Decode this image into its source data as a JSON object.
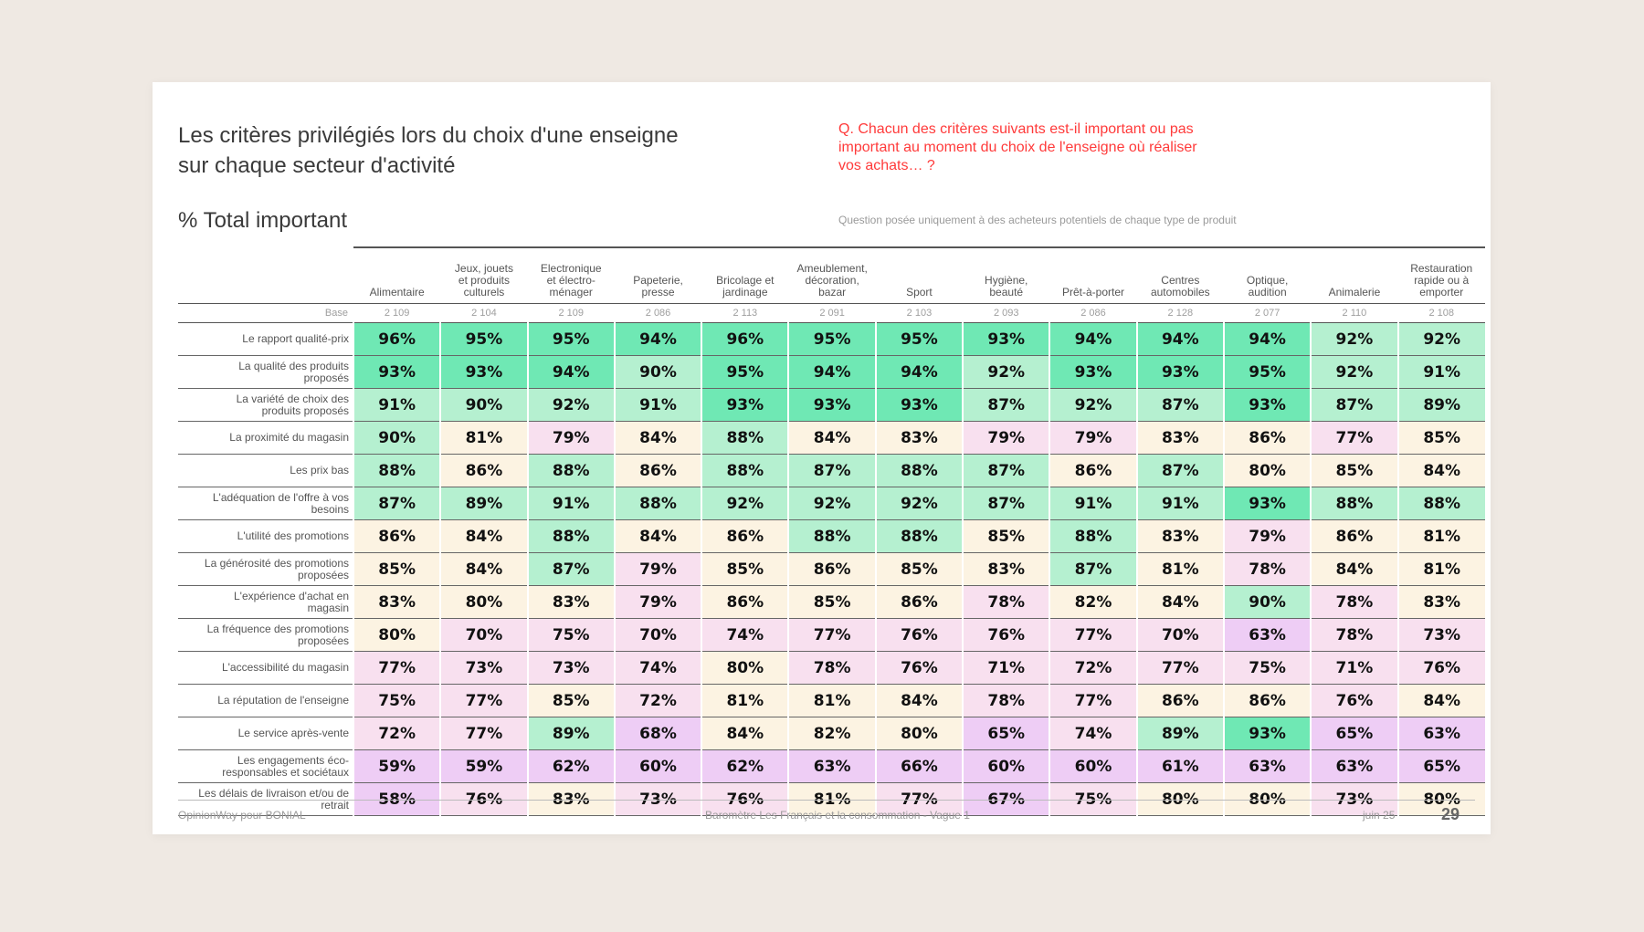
{
  "title_line1": "Les critères privilégiés lors du choix d'une enseigne",
  "title_line2": "sur chaque secteur d'activité",
  "question_line1": "Q. Chacun des critères suivants est-il important ou pas",
  "question_line2": "important au moment du choix de l'enseigne où réaliser",
  "question_line3": "vos achats… ?",
  "subtitle": "% Total important",
  "note": "Question posée uniquement à des acheteurs potentiels de chaque type de produit",
  "colors": {
    "green_high": "#6fe8b4",
    "green_mid": "#b5f0d0",
    "cream": "#fcf3e2",
    "pink": "#f8e0ef",
    "lavender": "#eecdf5"
  },
  "columns": [
    [
      "",
      "",
      "Alimentaire"
    ],
    [
      "Jeux, jouets",
      "et produits",
      "culturels"
    ],
    [
      "Electronique",
      "et électro-",
      "ménager"
    ],
    [
      "",
      "Papeterie,",
      "presse"
    ],
    [
      "",
      "Bricolage et",
      "jardinage"
    ],
    [
      "Ameublement,",
      "décoration,",
      "bazar"
    ],
    [
      "",
      "",
      "Sport"
    ],
    [
      "",
      "Hygiène,",
      "beauté"
    ],
    [
      "",
      "",
      "Prêt-à-porter"
    ],
    [
      "",
      "Centres",
      "automobiles"
    ],
    [
      "",
      "Optique,",
      "audition"
    ],
    [
      "",
      "",
      "Animalerie"
    ],
    [
      "Restauration",
      "rapide ou à",
      "emporter"
    ]
  ],
  "base_label": "Base",
  "bases": [
    "2 109",
    "2 104",
    "2 109",
    "2 086",
    "2 113",
    "2 091",
    "2 103",
    "2 093",
    "2 086",
    "2 128",
    "2 077",
    "2 110",
    "2 108"
  ],
  "rows": [
    {
      "label": [
        "Le rapport qualité-prix"
      ],
      "values": [
        96,
        95,
        95,
        94,
        96,
        95,
        95,
        93,
        94,
        94,
        94,
        92,
        92
      ]
    },
    {
      "label": [
        "La qualité des produits",
        "proposés"
      ],
      "values": [
        93,
        93,
        94,
        90,
        95,
        94,
        94,
        92,
        93,
        93,
        95,
        92,
        91
      ]
    },
    {
      "label": [
        "La variété de choix des",
        "produits proposés"
      ],
      "values": [
        91,
        90,
        92,
        91,
        93,
        93,
        93,
        87,
        92,
        87,
        93,
        87,
        89
      ]
    },
    {
      "label": [
        "La proximité du magasin"
      ],
      "values": [
        90,
        81,
        79,
        84,
        88,
        84,
        83,
        79,
        79,
        83,
        86,
        77,
        85
      ]
    },
    {
      "label": [
        "Les prix bas"
      ],
      "values": [
        88,
        86,
        88,
        86,
        88,
        87,
        88,
        87,
        86,
        87,
        80,
        85,
        84
      ]
    },
    {
      "label": [
        "L'adéquation de l'offre à vos",
        "besoins"
      ],
      "values": [
        87,
        89,
        91,
        88,
        92,
        92,
        92,
        87,
        91,
        91,
        93,
        88,
        88
      ]
    },
    {
      "label": [
        "L'utilité des promotions"
      ],
      "values": [
        86,
        84,
        88,
        84,
        86,
        88,
        88,
        85,
        88,
        83,
        79,
        86,
        81
      ]
    },
    {
      "label": [
        "La générosité des promotions",
        "proposées"
      ],
      "values": [
        85,
        84,
        87,
        79,
        85,
        86,
        85,
        83,
        87,
        81,
        78,
        84,
        81
      ]
    },
    {
      "label": [
        "L'expérience d'achat en",
        "magasin"
      ],
      "values": [
        83,
        80,
        83,
        79,
        86,
        85,
        86,
        78,
        82,
        84,
        90,
        78,
        83
      ]
    },
    {
      "label": [
        "La fréquence des promotions",
        "proposées"
      ],
      "values": [
        80,
        70,
        75,
        70,
        74,
        77,
        76,
        76,
        77,
        70,
        63,
        78,
        73
      ]
    },
    {
      "label": [
        "L'accessibilité du magasin"
      ],
      "values": [
        77,
        73,
        73,
        74,
        80,
        78,
        76,
        71,
        72,
        77,
        75,
        71,
        76
      ]
    },
    {
      "label": [
        "La réputation de l'enseigne"
      ],
      "values": [
        75,
        77,
        85,
        72,
        81,
        81,
        84,
        78,
        77,
        86,
        86,
        76,
        84
      ]
    },
    {
      "label": [
        "Le service après-vente"
      ],
      "values": [
        72,
        77,
        89,
        68,
        84,
        82,
        80,
        65,
        74,
        89,
        93,
        65,
        63
      ]
    },
    {
      "label": [
        "Les engagements éco-",
        "responsables et sociétaux"
      ],
      "values": [
        59,
        59,
        62,
        60,
        62,
        63,
        66,
        60,
        60,
        61,
        63,
        63,
        65
      ]
    },
    {
      "label": [
        "Les délais de livraison et/ou de",
        "retrait"
      ],
      "values": [
        58,
        76,
        83,
        73,
        76,
        81,
        77,
        67,
        75,
        80,
        80,
        73,
        80
      ]
    }
  ],
  "percent_suffix": "%",
  "footer_left": "OpinionWay pour BONIAL",
  "footer_center": "Baromètre Les Français et la consommation - Vague 1",
  "footer_date": "juin 25",
  "page_number": "29"
}
